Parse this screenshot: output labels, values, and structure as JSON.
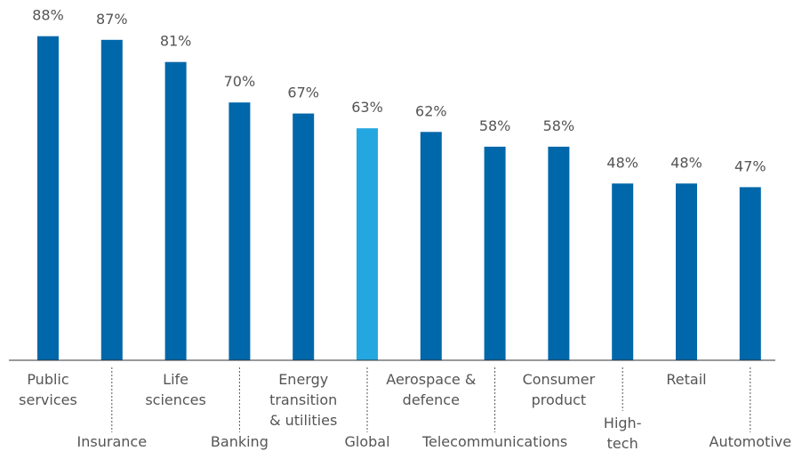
{
  "chart_data": {
    "type": "bar",
    "title": "",
    "xlabel": "",
    "ylabel": "",
    "ylim": [
      0,
      100
    ],
    "grid": false,
    "categories": [
      [
        "Public",
        "services"
      ],
      [
        "Insurance"
      ],
      [
        "Life",
        "sciences"
      ],
      [
        "Banking"
      ],
      [
        "Energy",
        "transition",
        "& utilities"
      ],
      [
        "Global"
      ],
      [
        "Aerospace &",
        "defence"
      ],
      [
        "Telecommunications"
      ],
      [
        "Consumer",
        "product"
      ],
      [
        "High-",
        "tech"
      ],
      [
        "Retail"
      ],
      [
        "Automotive"
      ]
    ],
    "values": [
      88,
      87,
      81,
      70,
      67,
      63,
      62,
      58,
      58,
      48,
      48,
      47
    ],
    "value_labels": [
      "88%",
      "87%",
      "81%",
      "70%",
      "67%",
      "63%",
      "62%",
      "58%",
      "58%",
      "48%",
      "48%",
      "47%"
    ],
    "highlight_index": 5,
    "colors": {
      "bar": "#0067AA",
      "highlight": "#24A7E0",
      "axis": "#333333",
      "text": "#555555"
    }
  }
}
